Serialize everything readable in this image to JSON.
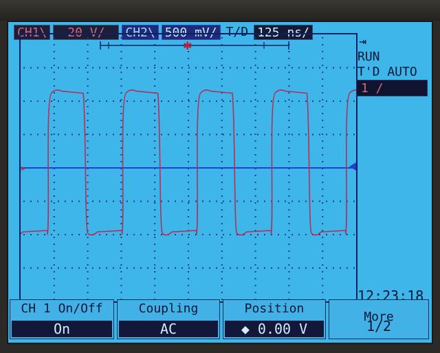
{
  "status": {
    "ch1_label": "CH1\\",
    "ch1_scale": "20  V/",
    "ch2_label": "CH2\\",
    "ch2_scale": "500 mV/",
    "td_label": "T/D",
    "td_scale": "125 ns/"
  },
  "side": {
    "run": "RUN",
    "trigger_mode": "T'D AUTO",
    "trigger_source": "1 /",
    "time": "12:23:18"
  },
  "softkeys": [
    {
      "label": "CH 1 On/Off",
      "value": "On"
    },
    {
      "label": "Coupling",
      "value": "AC"
    },
    {
      "label": "Position",
      "value": "◆  0.00  V"
    },
    {
      "label": "More",
      "value": "1/2"
    }
  ],
  "colors": {
    "screen_bg": "#3fb6ea",
    "ch1_trace": "#b0305a",
    "ch2_trace": "#2040d0",
    "grid": "#1f3c7a"
  },
  "icons": {
    "run_indicator": "run-arrow-icon",
    "trigger_marker": "trigger-star-icon"
  },
  "waveform": {
    "ch1_type": "square",
    "ch1_cycles_visible": 4.5,
    "ch1_high_div": 2.3,
    "ch1_low_div": -2.0,
    "ch2_level_div": 0.0
  }
}
